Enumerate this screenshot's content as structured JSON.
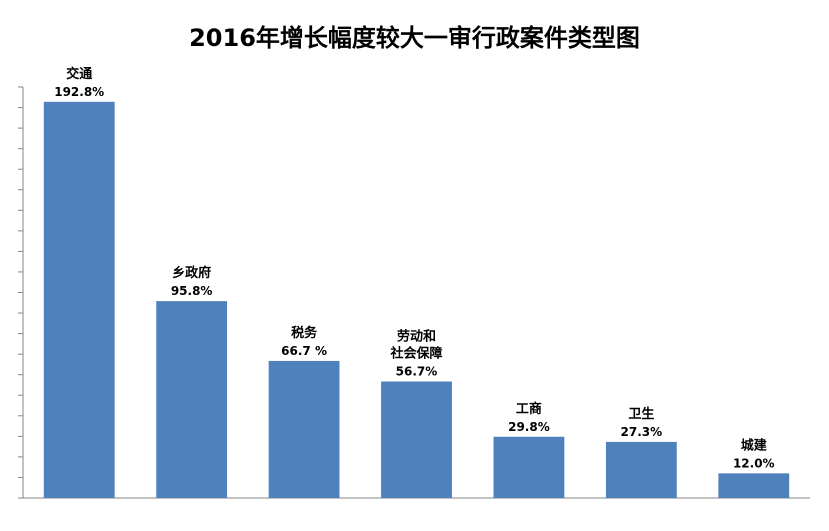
{
  "chart_data": {
    "type": "bar",
    "title": "2016年增长幅度较大一审行政案件类型图",
    "categories": [
      [
        "交通"
      ],
      [
        "乡政府"
      ],
      [
        "税务"
      ],
      [
        "劳动和",
        "社会保障"
      ],
      [
        "工商"
      ],
      [
        "卫生"
      ],
      [
        "城建"
      ]
    ],
    "values": [
      192.8,
      95.8,
      66.7,
      56.7,
      29.8,
      27.3,
      12.0
    ],
    "value_labels": [
      "192.8%",
      "95.8%",
      "66.7 %",
      "56.7%",
      "29.8%",
      "27.3%",
      "12.0%"
    ],
    "ylim": [
      0,
      200
    ],
    "y_ticks_count": 20,
    "y_tick_labels_shown": false,
    "grid": false,
    "bar_color": "#4f81bd"
  }
}
